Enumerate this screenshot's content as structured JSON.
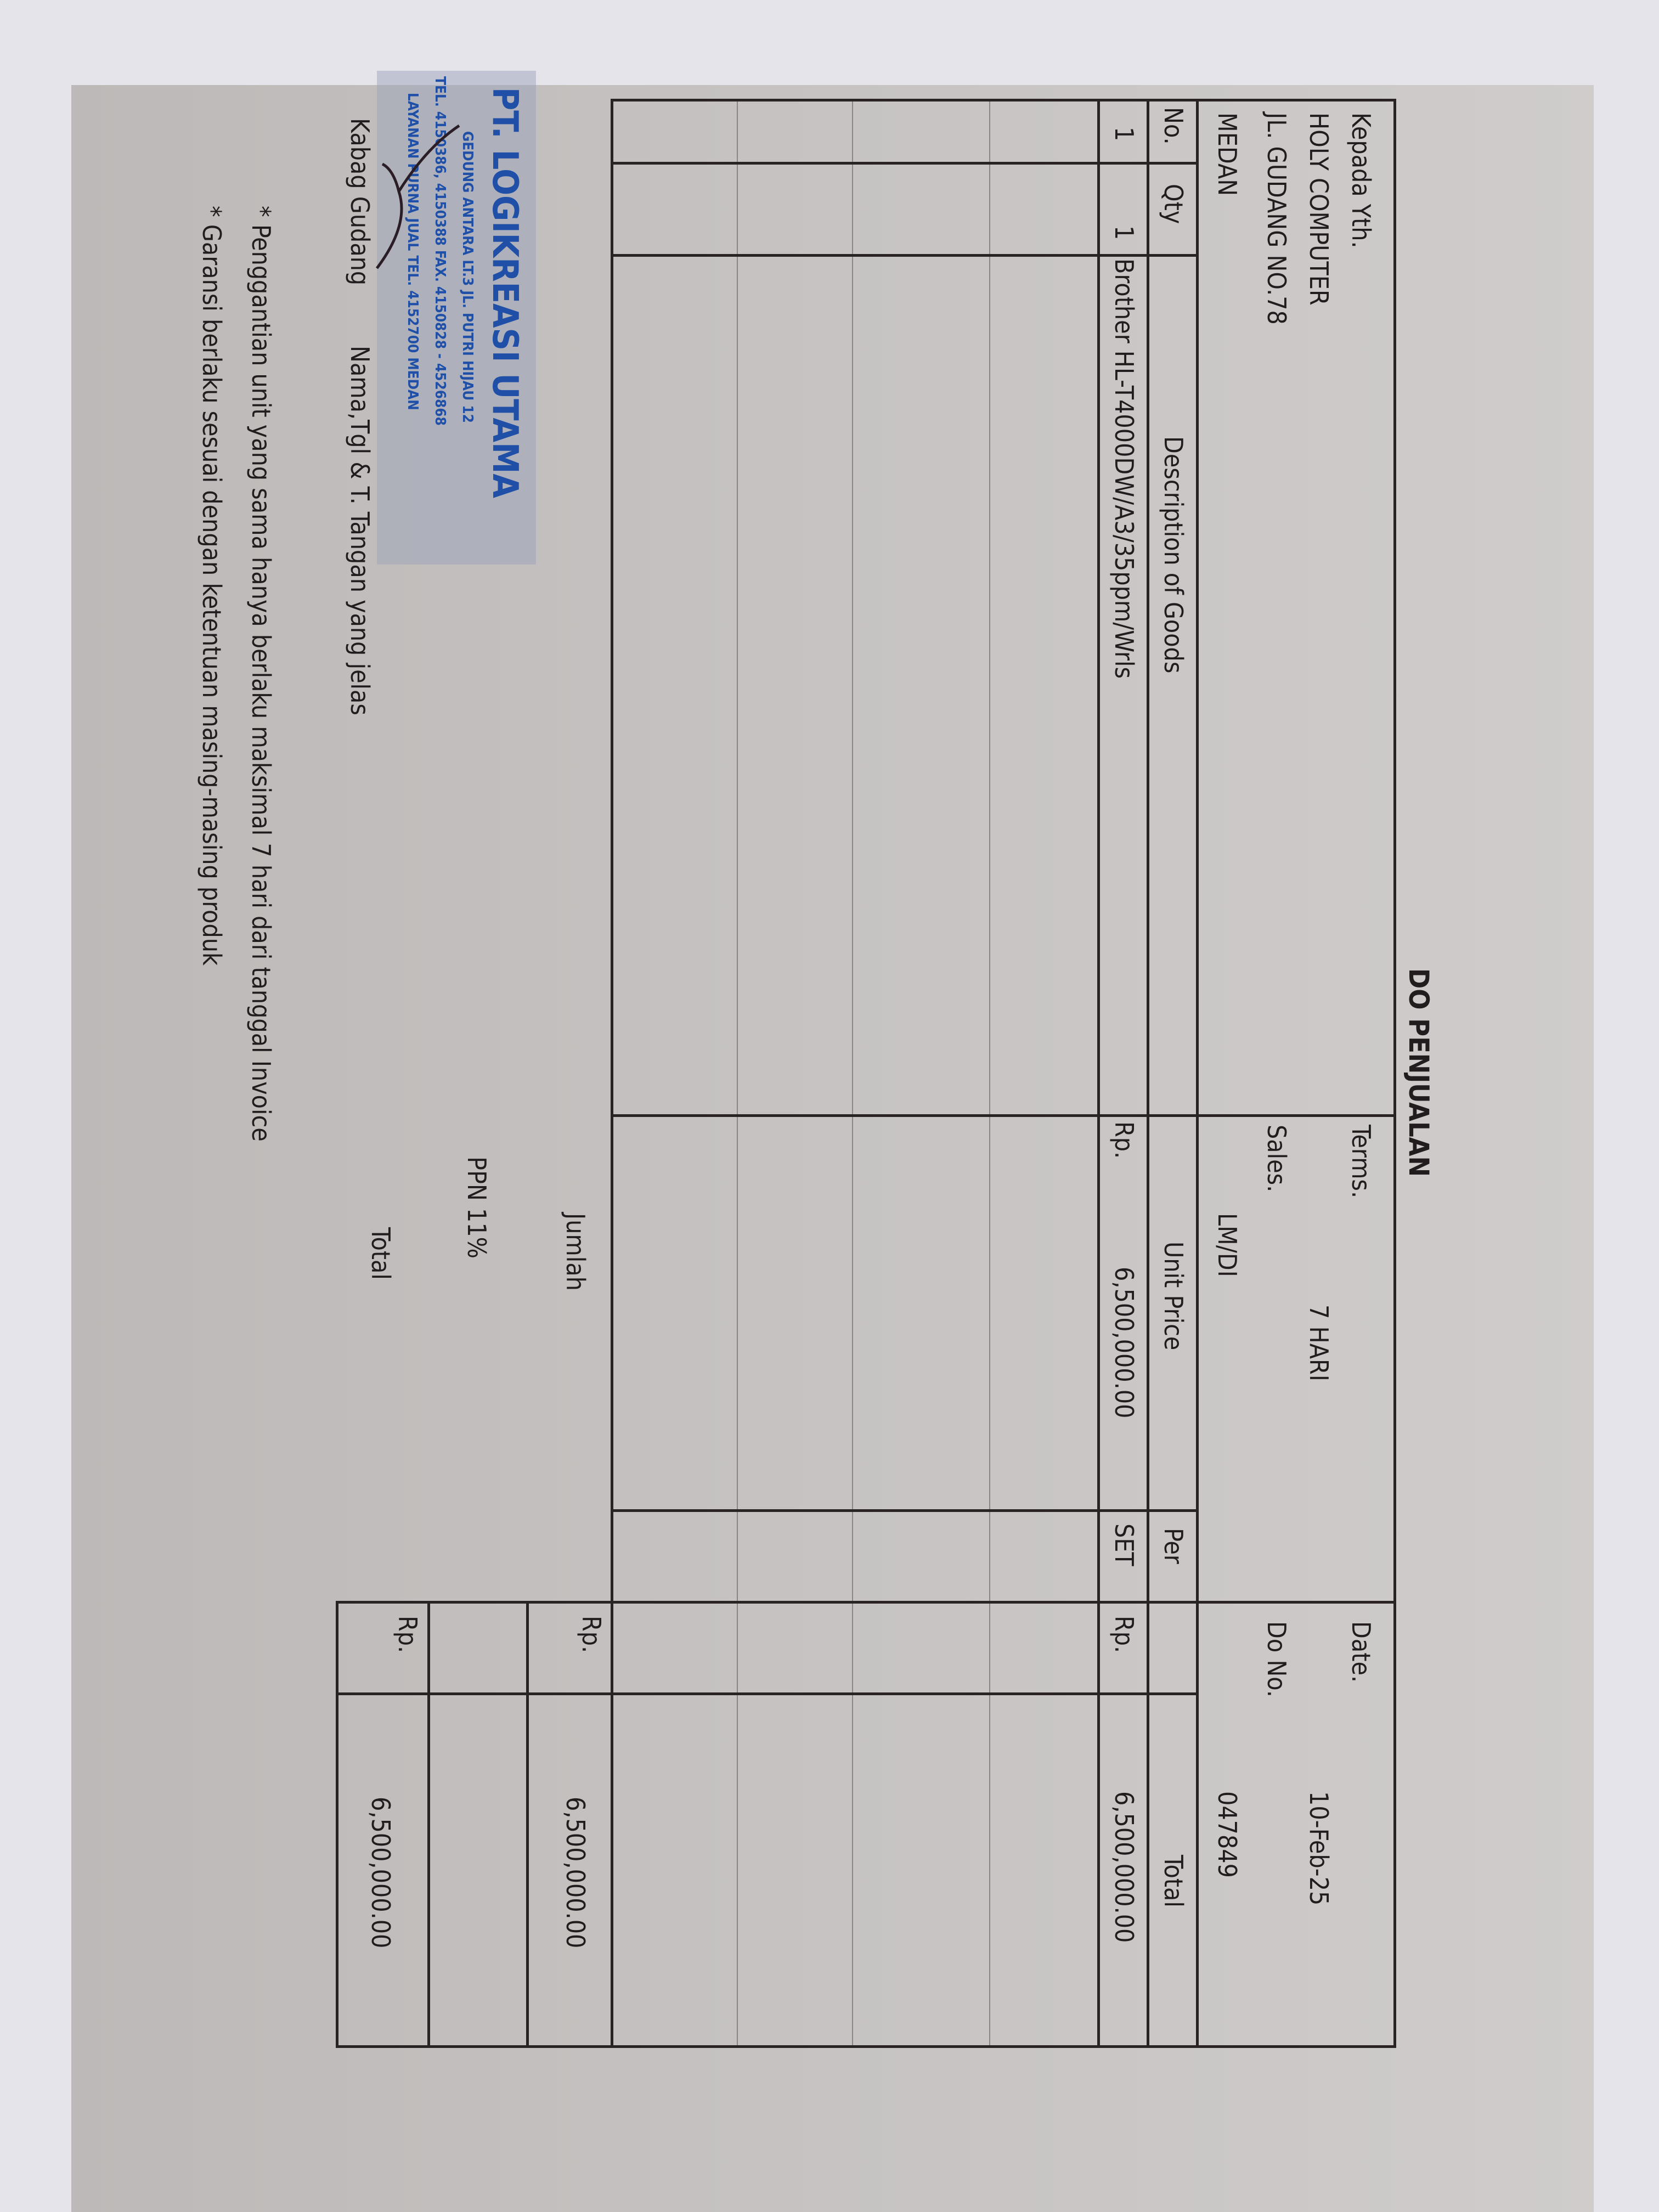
{
  "title": "DO PENJUALAN",
  "recipient": {
    "label": "Kepada Yth.",
    "name": "HOLY COMPUTER",
    "address": "JL. GUDANG NO.78",
    "city": "MEDAN"
  },
  "terms": {
    "label": "Terms.",
    "value": "7 HARI"
  },
  "sales": {
    "label": "Sales.",
    "value": "LM/DI"
  },
  "date": {
    "label": "Date.",
    "value": "10-Feb-25"
  },
  "do_no": {
    "label": "Do No.",
    "value": "047849"
  },
  "table": {
    "headers": [
      "No.",
      "Qty",
      "Description of Goods",
      "Unit Price",
      "Per",
      "Total"
    ],
    "rows": [
      {
        "no": "1",
        "qty": "1",
        "description": "Brother HL-T4000DW/A3/35ppm/Wrls",
        "price_currency": "Rp.",
        "unit_price": "6,500,000.00",
        "per": "SET",
        "total_currency": "Rp.",
        "total": "6,500,000.00"
      }
    ]
  },
  "summary": {
    "subtotal_label": "Jumlah",
    "subtotal_currency": "Rp.",
    "subtotal": "6,500,000.00",
    "tax_label": "PPN 11%",
    "tax": "",
    "total_label": "Total",
    "total_currency": "Rp.",
    "total": "6,500,000.00"
  },
  "signature": {
    "role": "Kabag Gudang",
    "instruction": "Nama,Tgl & T. Tangan yang jelas"
  },
  "stamp": {
    "company": "PT. LOGIKREASI UTAMA",
    "line1": "GEDUNG ANTARA LT.3 JL. PUTRI HIJAU 12",
    "line2": "TEL. 4150386, 4150388 FAX. 4150828 - 4526868",
    "line3": "LAYANAN PURNA JUAL TEL. 4152700 MEDAN",
    "color": "#1f4fa6"
  },
  "notes": [
    "* Penggantian unit yang sama hanya berlaku maksimal 7 hari dari tanggal Invoice",
    "* Garansi berlaku sesuai dengan ketentuan masing-masing produk"
  ]
}
